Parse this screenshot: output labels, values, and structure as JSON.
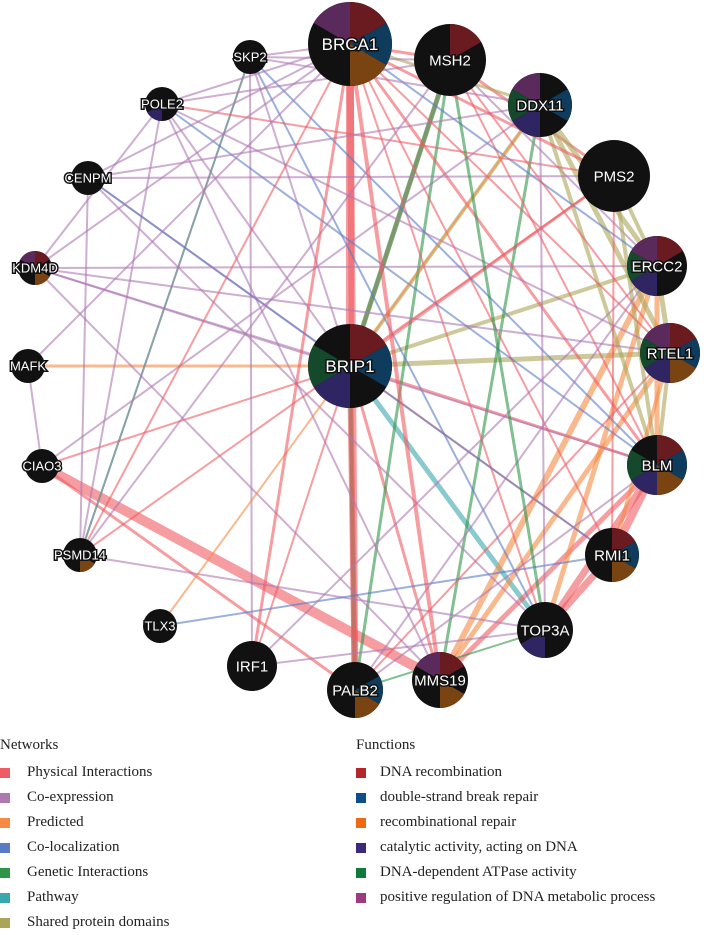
{
  "network": {
    "nodes": [
      {
        "id": "BRCA1",
        "funcs": [
          1,
          1,
          1,
          0,
          0,
          1
        ]
      },
      {
        "id": "MSH2",
        "funcs": [
          1,
          0,
          0,
          0,
          0,
          0
        ]
      },
      {
        "id": "DDX11",
        "funcs": [
          0,
          1,
          0,
          1,
          1,
          1
        ]
      },
      {
        "id": "PMS2",
        "funcs": [
          0,
          0,
          0,
          0,
          0,
          0
        ]
      },
      {
        "id": "ERCC2",
        "funcs": [
          1,
          0,
          0,
          1,
          1,
          1
        ]
      },
      {
        "id": "RTEL1",
        "funcs": [
          1,
          1,
          1,
          1,
          1,
          1
        ]
      },
      {
        "id": "BLM",
        "funcs": [
          1,
          1,
          1,
          1,
          1,
          0
        ]
      },
      {
        "id": "RMI1",
        "funcs": [
          1,
          1,
          1,
          0,
          0,
          0
        ]
      },
      {
        "id": "TOP3A",
        "funcs": [
          0,
          0,
          0,
          1,
          0,
          0
        ]
      },
      {
        "id": "MMS19",
        "funcs": [
          1,
          0,
          1,
          0,
          0,
          1
        ]
      },
      {
        "id": "PALB2",
        "funcs": [
          0,
          1,
          1,
          0,
          0,
          0
        ]
      },
      {
        "id": "IRF1",
        "funcs": [
          0,
          0,
          0,
          0,
          0,
          0
        ]
      },
      {
        "id": "TLX3",
        "funcs": [
          0,
          0,
          0,
          0,
          0,
          0
        ]
      },
      {
        "id": "PSMD14",
        "funcs": [
          0,
          0,
          1,
          0,
          0,
          0
        ]
      },
      {
        "id": "CIAO3",
        "funcs": [
          0,
          0,
          0,
          0,
          0,
          0
        ]
      },
      {
        "id": "MAFK",
        "funcs": [
          0,
          0,
          0,
          0,
          0,
          0
        ]
      },
      {
        "id": "KDM4D",
        "funcs": [
          1,
          0,
          1,
          0,
          0,
          1
        ]
      },
      {
        "id": "CENPM",
        "funcs": [
          0,
          0,
          0,
          0,
          0,
          0
        ]
      },
      {
        "id": "POLE2",
        "funcs": [
          0,
          0,
          0,
          1,
          0,
          0
        ]
      },
      {
        "id": "SKP2",
        "funcs": [
          0,
          0,
          0,
          0,
          0,
          0
        ]
      },
      {
        "id": "BRIP1",
        "funcs": [
          1,
          1,
          0,
          1,
          1,
          0
        ],
        "query": true
      }
    ],
    "edges": [
      [
        "BRIP1",
        "BRCA1",
        "physical",
        8
      ],
      [
        "BRIP1",
        "MSH2",
        "physical",
        4
      ],
      [
        "BRIP1",
        "PALB2",
        "physical",
        6
      ],
      [
        "BRIP1",
        "BLM",
        "physical",
        3
      ],
      [
        "BRIP1",
        "MSH2",
        "genetic",
        5
      ],
      [
        "BRIP1",
        "PALB2",
        "genetic",
        4
      ],
      [
        "BRIP1",
        "TOP3A",
        "pathway",
        5
      ],
      [
        "BRIP1",
        "RTEL1",
        "shared",
        5
      ],
      [
        "BRIP1",
        "ERCC2",
        "shared",
        4
      ],
      [
        "BRIP1",
        "DDX11",
        "shared",
        4
      ],
      [
        "BRIP1",
        "MAFK",
        "predicted",
        3
      ],
      [
        "BRIP1",
        "PMS2",
        "physical",
        3
      ],
      [
        "BRIP1",
        "RMI1",
        "physical",
        2
      ],
      [
        "BRIP1",
        "IRF1",
        "physical",
        2
      ],
      [
        "BRIP1",
        "MMS19",
        "physical",
        3
      ],
      [
        "BRIP1",
        "CIAO3",
        "physical",
        2
      ],
      [
        "BRIP1",
        "SKP2",
        "coexpression",
        2
      ],
      [
        "BRIP1",
        "POLE2",
        "coexpression",
        2
      ],
      [
        "BRIP1",
        "KDM4D",
        "coexpression",
        2
      ],
      [
        "BRIP1",
        "CENPM",
        "coexpression",
        2
      ],
      [
        "CIAO3",
        "MMS19",
        "physical",
        10
      ],
      [
        "CIAO3",
        "PALB2",
        "physical",
        3
      ],
      [
        "MMS19",
        "ERCC2",
        "predicted",
        6
      ],
      [
        "MMS19",
        "RTEL1",
        "predicted",
        5
      ],
      [
        "MMS19",
        "BLM",
        "physical",
        5
      ],
      [
        "TOP3A",
        "BLM",
        "physical",
        7
      ],
      [
        "TOP3A",
        "RMI1",
        "physical",
        7
      ],
      [
        "RMI1",
        "BLM",
        "physical",
        8
      ],
      [
        "TOP3A",
        "ERCC2",
        "predicted",
        5
      ],
      [
        "PALB2",
        "BRCA1",
        "physical",
        7
      ],
      [
        "PALB2",
        "MSH2",
        "genetic",
        3
      ],
      [
        "MMS19",
        "DDX11",
        "genetic",
        3
      ],
      [
        "BRCA1",
        "BLM",
        "physical",
        3
      ],
      [
        "BRCA1",
        "RMI1",
        "physical",
        2
      ],
      [
        "BRCA1",
        "TOP3A",
        "physical",
        2
      ],
      [
        "BRCA1",
        "MSH2",
        "physical",
        3
      ],
      [
        "MSH2",
        "PMS2",
        "physical",
        3
      ],
      [
        "MSH2",
        "BLM",
        "physical",
        2
      ],
      [
        "MSH2",
        "ERCC2",
        "coexpression",
        2
      ],
      [
        "DDX11",
        "RTEL1",
        "shared",
        5
      ],
      [
        "DDX11",
        "ERCC2",
        "shared",
        5
      ],
      [
        "DDX11",
        "BLM",
        "shared",
        4
      ],
      [
        "ERCC2",
        "RTEL1",
        "shared",
        5
      ],
      [
        "RTEL1",
        "BLM",
        "shared",
        4
      ],
      [
        "PMS2",
        "BLM",
        "shared",
        4
      ],
      [
        "BRCA1",
        "ERCC2",
        "colocalization",
        2
      ],
      [
        "BRCA1",
        "DDX11",
        "shared",
        3
      ],
      [
        "PMS2",
        "ERCC2",
        "shared",
        4
      ],
      [
        "SKP2",
        "BRCA1",
        "coexpression",
        2
      ],
      [
        "SKP2",
        "MSH2",
        "coexpression",
        2
      ],
      [
        "SKP2",
        "DDX11",
        "coexpression",
        2
      ],
      [
        "SKP2",
        "PSMD14",
        "physical",
        2
      ],
      [
        "SKP2",
        "PSMD14",
        "pathway",
        2
      ],
      [
        "SKP2",
        "BLM",
        "colocalization",
        2
      ],
      [
        "SKP2",
        "TOP3A",
        "colocalization",
        2
      ],
      [
        "SKP2",
        "IRF1",
        "coexpression",
        2
      ],
      [
        "POLE2",
        "BRCA1",
        "coexpression",
        2
      ],
      [
        "POLE2",
        "MSH2",
        "coexpression",
        2
      ],
      [
        "POLE2",
        "PMS2",
        "physical",
        2
      ],
      [
        "POLE2",
        "BLM",
        "colocalization",
        2
      ],
      [
        "POLE2",
        "RTEL1",
        "coexpression",
        2
      ],
      [
        "POLE2",
        "PSMD14",
        "coexpression",
        2
      ],
      [
        "POLE2",
        "MMS19",
        "coexpression",
        2
      ],
      [
        "POLE2",
        "KDM4D",
        "coexpression",
        2
      ],
      [
        "CENPM",
        "BRCA1",
        "coexpression",
        2
      ],
      [
        "CENPM",
        "DDX11",
        "coexpression",
        2
      ],
      [
        "CENPM",
        "RMI1",
        "colocalization",
        2
      ],
      [
        "CENPM",
        "TOP3A",
        "coexpression",
        2
      ],
      [
        "CENPM",
        "PMS2",
        "coexpression",
        2
      ],
      [
        "CENPM",
        "PSMD14",
        "coexpression",
        2
      ],
      [
        "KDM4D",
        "BRCA1",
        "coexpression",
        2
      ],
      [
        "KDM4D",
        "MMS19",
        "coexpression",
        2
      ],
      [
        "KDM4D",
        "ERCC2",
        "coexpression",
        2
      ],
      [
        "KDM4D",
        "BLM",
        "coexpression",
        2
      ],
      [
        "KDM4D",
        "RTEL1",
        "coexpression",
        2
      ],
      [
        "MAFK",
        "CIAO3",
        "coexpression",
        2
      ],
      [
        "MAFK",
        "BRCA1",
        "coexpression",
        2
      ],
      [
        "CIAO3",
        "DDX11",
        "coexpression",
        2
      ],
      [
        "PSMD14",
        "BRCA1",
        "physical",
        2
      ],
      [
        "PSMD14",
        "PMS2",
        "physical",
        2
      ],
      [
        "PSMD14",
        "MSH2",
        "coexpression",
        2
      ],
      [
        "PSMD14",
        "TOP3A",
        "coexpression",
        2
      ],
      [
        "TLX3",
        "DDX11",
        "predicted",
        2
      ],
      [
        "TLX3",
        "RMI1",
        "colocalization",
        2
      ],
      [
        "IRF1",
        "BRCA1",
        "physical",
        3
      ],
      [
        "IRF1",
        "ERCC2",
        "coexpression",
        2
      ],
      [
        "IRF1",
        "TOP3A",
        "coexpression",
        2
      ],
      [
        "PALB2",
        "RTEL1",
        "physical",
        2
      ],
      [
        "PALB2",
        "BLM",
        "coexpression",
        2
      ],
      [
        "PALB2",
        "ERCC2",
        "coexpression",
        2
      ],
      [
        "PALB2",
        "TOP3A",
        "genetic",
        2
      ],
      [
        "MSH2",
        "TOP3A",
        "genetic",
        3
      ],
      [
        "BRCA1",
        "MMS19",
        "physical",
        4
      ],
      [
        "BRCA1",
        "RTEL1",
        "physical",
        2
      ],
      [
        "DDX11",
        "TOP3A",
        "coexpression",
        2
      ],
      [
        "PMS2",
        "RMI1",
        "physical",
        2
      ],
      [
        "ERCC2",
        "BLM",
        "predicted",
        5
      ],
      [
        "RTEL1",
        "RMI1",
        "predicted",
        4
      ],
      [
        "BRCA1",
        "PMS2",
        "physical",
        3
      ],
      [
        "MSH2",
        "RTEL1",
        "physical",
        2
      ]
    ]
  },
  "legend": {
    "networks_title": "Networks",
    "networks": [
      {
        "key": "physical",
        "label": "Physical Interactions",
        "color": "#ef5c63"
      },
      {
        "key": "coexpression",
        "label": "Co-expression",
        "color": "#ae78b3"
      },
      {
        "key": "predicted",
        "label": "Predicted",
        "color": "#f58a44"
      },
      {
        "key": "colocalization",
        "label": "Co-localization",
        "color": "#5a7cc4"
      },
      {
        "key": "genetic",
        "label": "Genetic Interactions",
        "color": "#2e9447"
      },
      {
        "key": "pathway",
        "label": "Pathway",
        "color": "#3aa6ad"
      },
      {
        "key": "shared",
        "label": "Shared protein domains",
        "color": "#aba559"
      }
    ],
    "functions_title": "Functions",
    "functions": [
      {
        "label": "DNA recombination",
        "color": "#b5252a",
        "node_color": "#6a1b1f"
      },
      {
        "label": "double-strand break repair",
        "color": "#0e4e8a",
        "node_color": "#0f3b5c"
      },
      {
        "label": "recombinational repair",
        "color": "#f06812",
        "node_color": "#7a4312"
      },
      {
        "label": "catalytic activity, acting on DNA",
        "color": "#3a2a78",
        "node_color": "#2f2562"
      },
      {
        "label": "DNA-dependent ATPase activity",
        "color": "#107a3b",
        "node_color": "#14492b"
      },
      {
        "label": "positive regulation of DNA metabolic process",
        "color": "#9c3b7f",
        "node_color": "#5b2a5c"
      }
    ]
  }
}
